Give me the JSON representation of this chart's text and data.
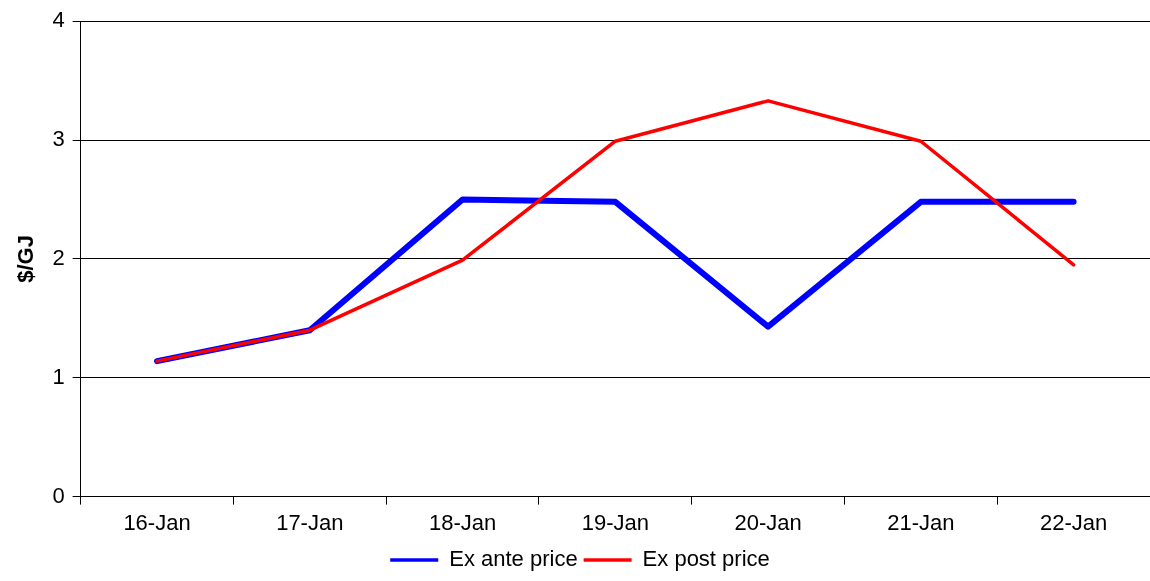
{
  "chart_data": {
    "type": "line",
    "ylabel": "$/GJ",
    "categories": [
      "16-Jan",
      "17-Jan",
      "18-Jan",
      "19-Jan",
      "20-Jan",
      "21-Jan",
      "22-Jan"
    ],
    "series": [
      {
        "name": "Ex ante price",
        "color": "#0000ff",
        "values": [
          1.14,
          1.4,
          2.5,
          2.48,
          1.43,
          2.48,
          2.48
        ]
      },
      {
        "name": "Ex post price",
        "color": "#ff0000",
        "values": [
          1.14,
          1.4,
          1.99,
          2.99,
          3.33,
          2.99,
          1.95
        ]
      }
    ],
    "ylim": [
      0,
      4
    ],
    "yticks": [
      0,
      1,
      2,
      3,
      4
    ],
    "grid": "y",
    "legend": "bottom",
    "marker": "none",
    "line_style": "solid"
  }
}
